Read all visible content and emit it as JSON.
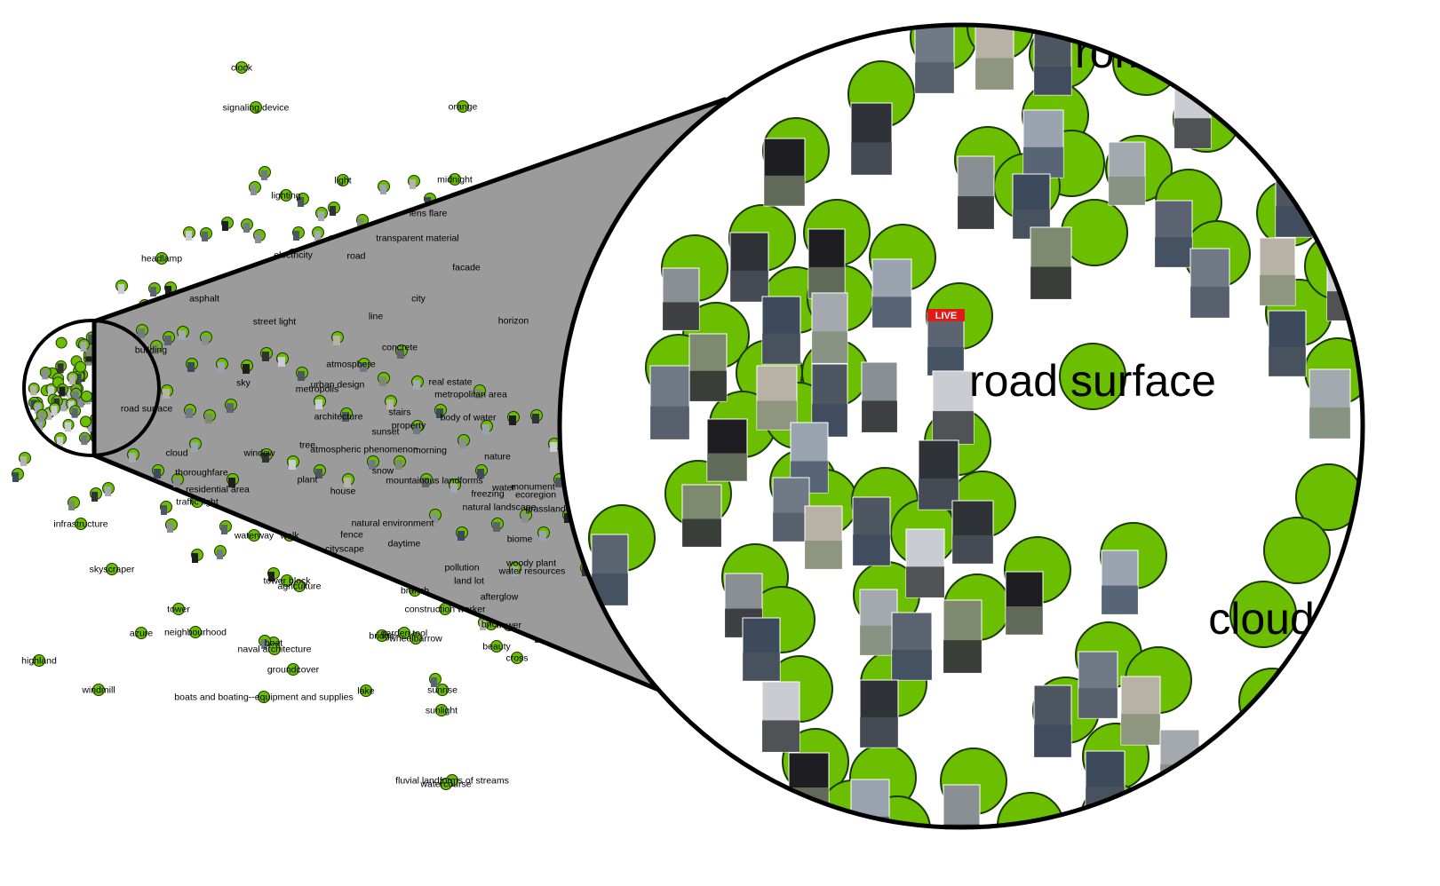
{
  "colors": {
    "node_fill": "#6bbe00",
    "node_stroke": "#1a3a00",
    "cone_fill": "#9b9b9b",
    "outline": "#000000",
    "background": "#ffffff"
  },
  "overview_labels": [
    "clock",
    "signaling device",
    "orange",
    "light",
    "midnight",
    "lighting",
    "lens flare",
    "headlamp",
    "electricity",
    "road",
    "facade",
    "transparent material",
    "asphalt",
    "city",
    "street light",
    "line",
    "horizon",
    "building",
    "atmosphere",
    "urban design",
    "metropolis",
    "sky",
    "real estate",
    "metropolitan area",
    "road surface",
    "architecture",
    "stairs",
    "body of water",
    "concrete",
    "property",
    "sunset",
    "cloud",
    "window",
    "tree",
    "atmospheric phenomenon",
    "morning",
    "nature",
    "thoroughfare",
    "plant",
    "snow",
    "mountainous landforms",
    "residential area",
    "house",
    "freezing",
    "water",
    "monument",
    "ecoregion",
    "traffic light",
    "natural landscape",
    "grassland",
    "infrastructure",
    "natural environment",
    "fence",
    "waterway",
    "walk",
    "cityscape",
    "daytime",
    "biome",
    "skyscraper",
    "pollution",
    "woody plant",
    "land lot",
    "water resources",
    "tower block",
    "agriculture",
    "branch",
    "afterglow",
    "tower",
    "construction worker",
    "brick",
    "flower",
    "azure",
    "neighbourhood",
    "garden tool",
    "bridge",
    "wheelbarrow",
    "boat",
    "naval architecture",
    "beauty",
    "cross",
    "highland",
    "groundcover",
    "windmill",
    "lake",
    "sunrise",
    "boats and boating--equipment and supplies",
    "sunlight",
    "fluvial landforms of streams",
    "watercourse"
  ],
  "zoom_labels": {
    "top": "rom",
    "center": "road surface",
    "right": "cloud"
  },
  "badges": {
    "live": "LIVE"
  }
}
